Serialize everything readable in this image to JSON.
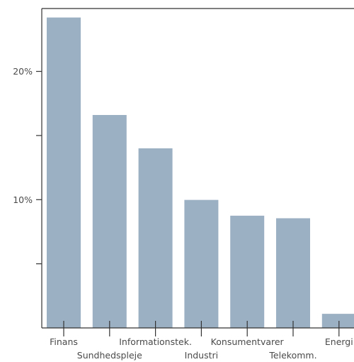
{
  "chart_data": {
    "type": "bar",
    "title": "",
    "xlabel": "",
    "ylabel": "",
    "categories": [
      "Finans",
      "Sundhedspleje",
      "Informationstek.",
      "Industri",
      "Konsumentvarer",
      "Telekomm.",
      "Energi"
    ],
    "values": [
      24.2,
      16.6,
      14.0,
      9.98,
      8.75,
      8.55,
      1.1
    ],
    "ylim": [
      0,
      24.9
    ],
    "yticks": [
      5,
      10,
      15,
      20
    ],
    "ytick_labels": [
      "",
      "10%",
      "",
      "20%"
    ],
    "grid": false,
    "bar_color": "#9cb0c3",
    "axis_color": "#333333"
  }
}
